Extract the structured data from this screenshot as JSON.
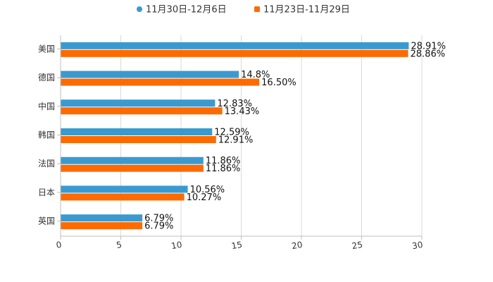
{
  "chart_data": {
    "type": "bar",
    "orientation": "horizontal",
    "categories": [
      "美国",
      "德国",
      "中国",
      "韩国",
      "法国",
      "日本",
      "英国"
    ],
    "series": [
      {
        "name": "11月30日-12月6日",
        "color": "#3a9ad0",
        "values": [
          28.91,
          14.8,
          12.83,
          12.59,
          11.86,
          10.56,
          6.79
        ],
        "labels": [
          "28.91%",
          "14.8%",
          "12.83%",
          "12.59%",
          "11.86%",
          "10.56%",
          "6.79%"
        ]
      },
      {
        "name": "11月23日-11月29日",
        "color": "#ff6a00",
        "values": [
          28.86,
          16.5,
          13.43,
          12.91,
          11.86,
          10.27,
          6.79
        ],
        "labels": [
          "28.86%",
          "16.50%",
          "13.43%",
          "12.91%",
          "11.86%",
          "10.27%",
          "6.79%"
        ]
      }
    ],
    "xlim": [
      0,
      30
    ],
    "xticks": [
      "0",
      "5",
      "10",
      "15",
      "20",
      "25",
      "30"
    ],
    "xtick_values": [
      0,
      5,
      10,
      15,
      20,
      25,
      30
    ],
    "grid": true,
    "legend_position": "top-center"
  }
}
